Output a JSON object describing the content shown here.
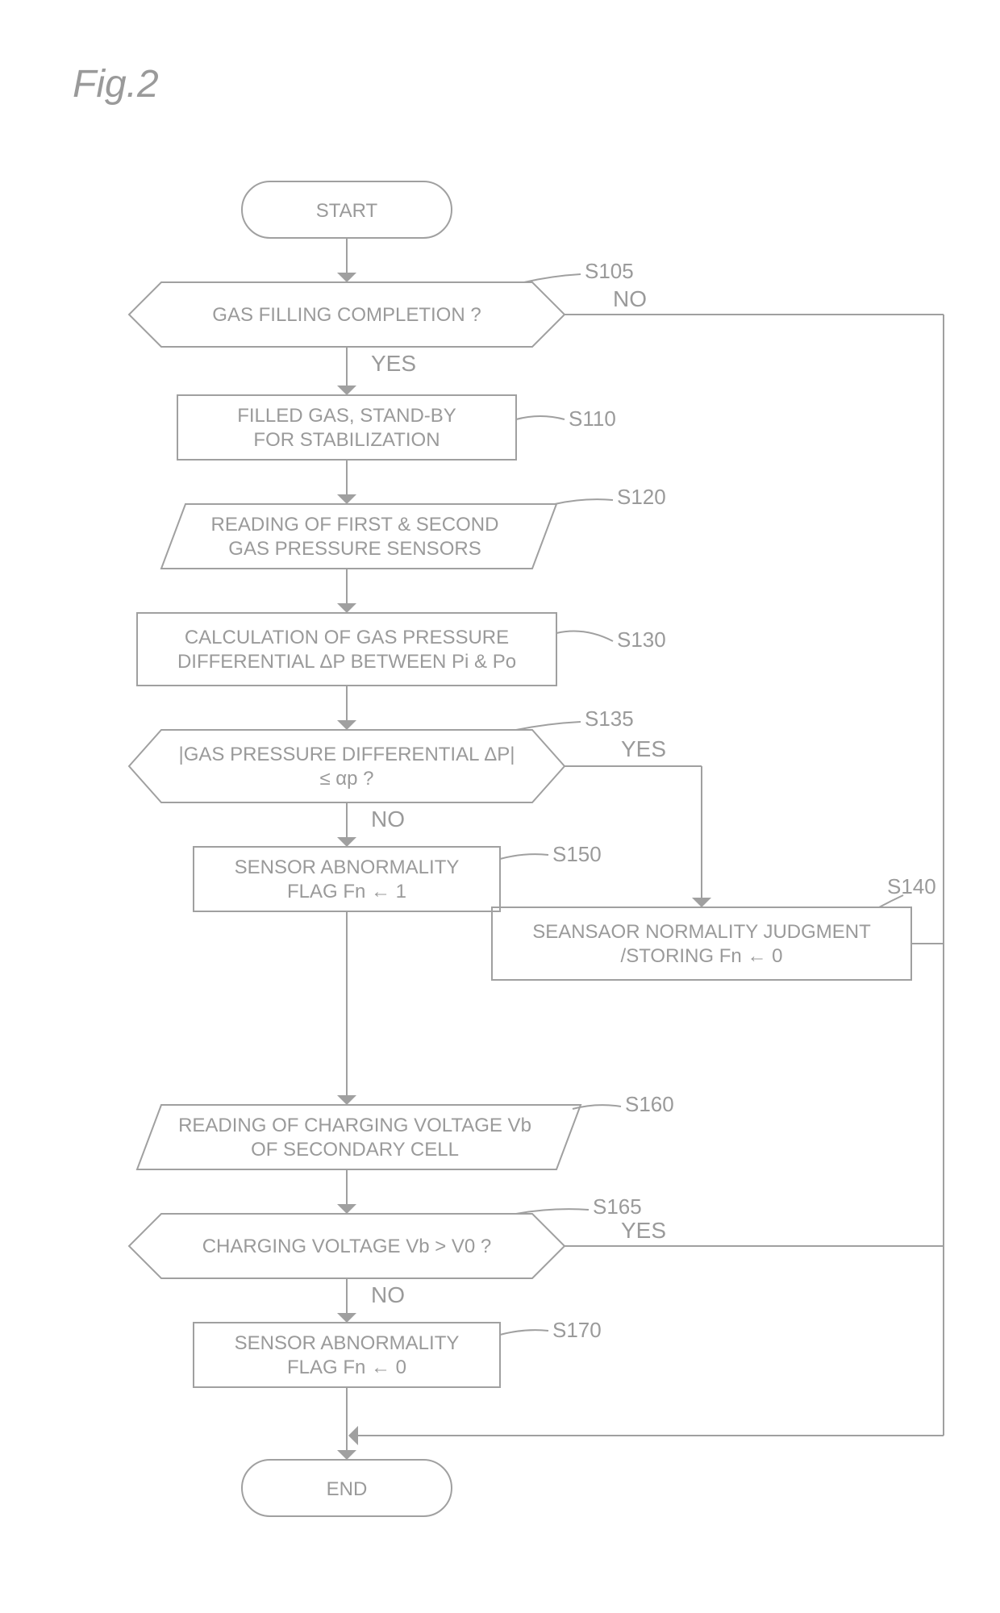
{
  "figure_title": "Fig.2",
  "colors": {
    "stroke": "#a0a0a0",
    "text": "#9a9a9a",
    "bg": "#ffffff"
  },
  "stroke_width": 2,
  "arrow_size": 12,
  "nodes": {
    "start": {
      "label": "START"
    },
    "end": {
      "label": "END"
    },
    "s105": {
      "step": "S105",
      "text": [
        "GAS FILLING COMPLETION ?"
      ],
      "yes": "YES",
      "no": "NO"
    },
    "s110": {
      "step": "S110",
      "text": [
        "FILLED GAS, STAND-BY",
        "FOR STABILIZATION"
      ]
    },
    "s120": {
      "step": "S120",
      "text": [
        "READING OF FIRST & SECOND",
        "GAS PRESSURE SENSORS"
      ]
    },
    "s130": {
      "step": "S130",
      "text": [
        "CALCULATION OF GAS PRESSURE",
        "DIFFERENTIAL ΔP BETWEEN Pi & Po"
      ]
    },
    "s135": {
      "step": "S135",
      "text": [
        "|GAS PRESSURE DIFFERENTIAL ΔP|",
        "≤ αp ?"
      ],
      "yes": "YES",
      "no": "NO"
    },
    "s140": {
      "step": "S140",
      "text": [
        "SEANSAOR NORMALITY JUDGMENT",
        "/STORING  Fn ← 0"
      ]
    },
    "s150": {
      "step": "S150",
      "text": [
        "SENSOR ABNORMALITY",
        "FLAG Fn ← 1"
      ]
    },
    "s160": {
      "step": "S160",
      "text": [
        "READING OF CHARGING VOLTAGE Vb",
        "OF SECONDARY CELL"
      ]
    },
    "s165": {
      "step": "S165",
      "text": [
        "CHARGING VOLTAGE Vb > V0 ?"
      ],
      "yes": "YES",
      "no": "NO"
    },
    "s170": {
      "step": "S170",
      "text": [
        "SENSOR ABNORMALITY",
        "FLAG Fn ← 0"
      ]
    }
  }
}
